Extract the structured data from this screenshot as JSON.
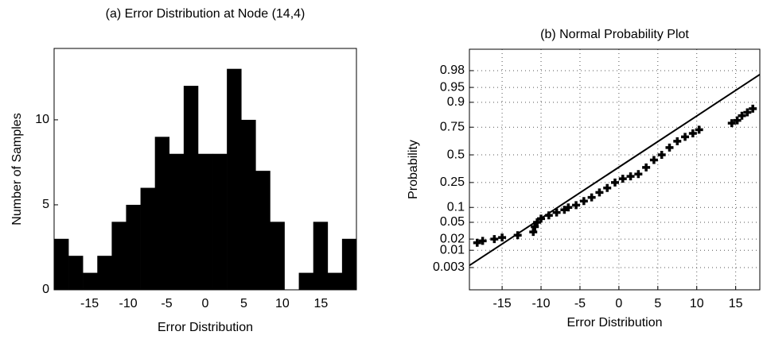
{
  "chart_data": [
    {
      "type": "histogram",
      "title": "(a) Error Distribution at Node (14,4)",
      "x_label": "Error Distribution",
      "y_label": "Number of Samples",
      "bins": [
        -19.6,
        -17.73,
        -15.87,
        -14.0,
        -12.13,
        -10.27,
        -8.4,
        -6.53,
        -4.67,
        -2.8,
        -0.93,
        0.93,
        2.8,
        4.67,
        6.53,
        8.4,
        10.27,
        12.13,
        14.0,
        15.87,
        17.73,
        19.6
      ],
      "counts": [
        3,
        2,
        1,
        2,
        4,
        5,
        6,
        9,
        8,
        12,
        8,
        8,
        13,
        10,
        7,
        4,
        0,
        1,
        4,
        1,
        3
      ],
      "color": "#000000",
      "xlim": [
        -19.6,
        19.6
      ],
      "ylim": [
        0,
        14.2
      ],
      "xticks": [
        -15,
        -10,
        -5,
        0,
        5,
        10,
        15
      ],
      "yticks": [
        0,
        5,
        10
      ]
    },
    {
      "type": "scatter",
      "title": "(b) Normal Probability Plot",
      "x_label": "Error Distribution",
      "y_label": "Probability",
      "yscale": "normal",
      "grid": true,
      "color": "#000000",
      "x": [
        -18.2,
        -17.5,
        -16,
        -15,
        -13,
        -11,
        -10.8,
        -10.5,
        -10,
        -9,
        -8,
        -7,
        -6.5,
        -5.5,
        -4.5,
        -3.5,
        -2.5,
        -1.5,
        -0.5,
        0.5,
        1.5,
        2.5,
        3.5,
        4.5,
        5.5,
        6.5,
        7.5,
        8.5,
        9.5,
        10.3,
        14.5,
        15.2,
        15.8,
        16.5,
        17.2
      ],
      "values": [
        0.016,
        0.018,
        0.02,
        0.022,
        0.025,
        0.03,
        0.04,
        0.05,
        0.06,
        0.07,
        0.08,
        0.09,
        0.1,
        0.11,
        0.13,
        0.15,
        0.18,
        0.21,
        0.25,
        0.28,
        0.3,
        0.32,
        0.38,
        0.45,
        0.5,
        0.57,
        0.63,
        0.67,
        0.7,
        0.73,
        0.78,
        0.8,
        0.83,
        0.85,
        0.87
      ],
      "fit_line": {
        "x": [
          -19.2,
          18.1
        ],
        "values": [
          0.0035,
          0.975
        ]
      },
      "xlim": [
        -19.2,
        18.1
      ],
      "ylim": [
        0.0005,
        0.995
      ],
      "xticks": [
        -15,
        -10,
        -5,
        0,
        5,
        10,
        15
      ],
      "yticks": [
        0.003,
        0.01,
        0.02,
        0.05,
        0.1,
        0.25,
        0.5,
        0.75,
        0.9,
        0.95,
        0.98
      ]
    }
  ]
}
